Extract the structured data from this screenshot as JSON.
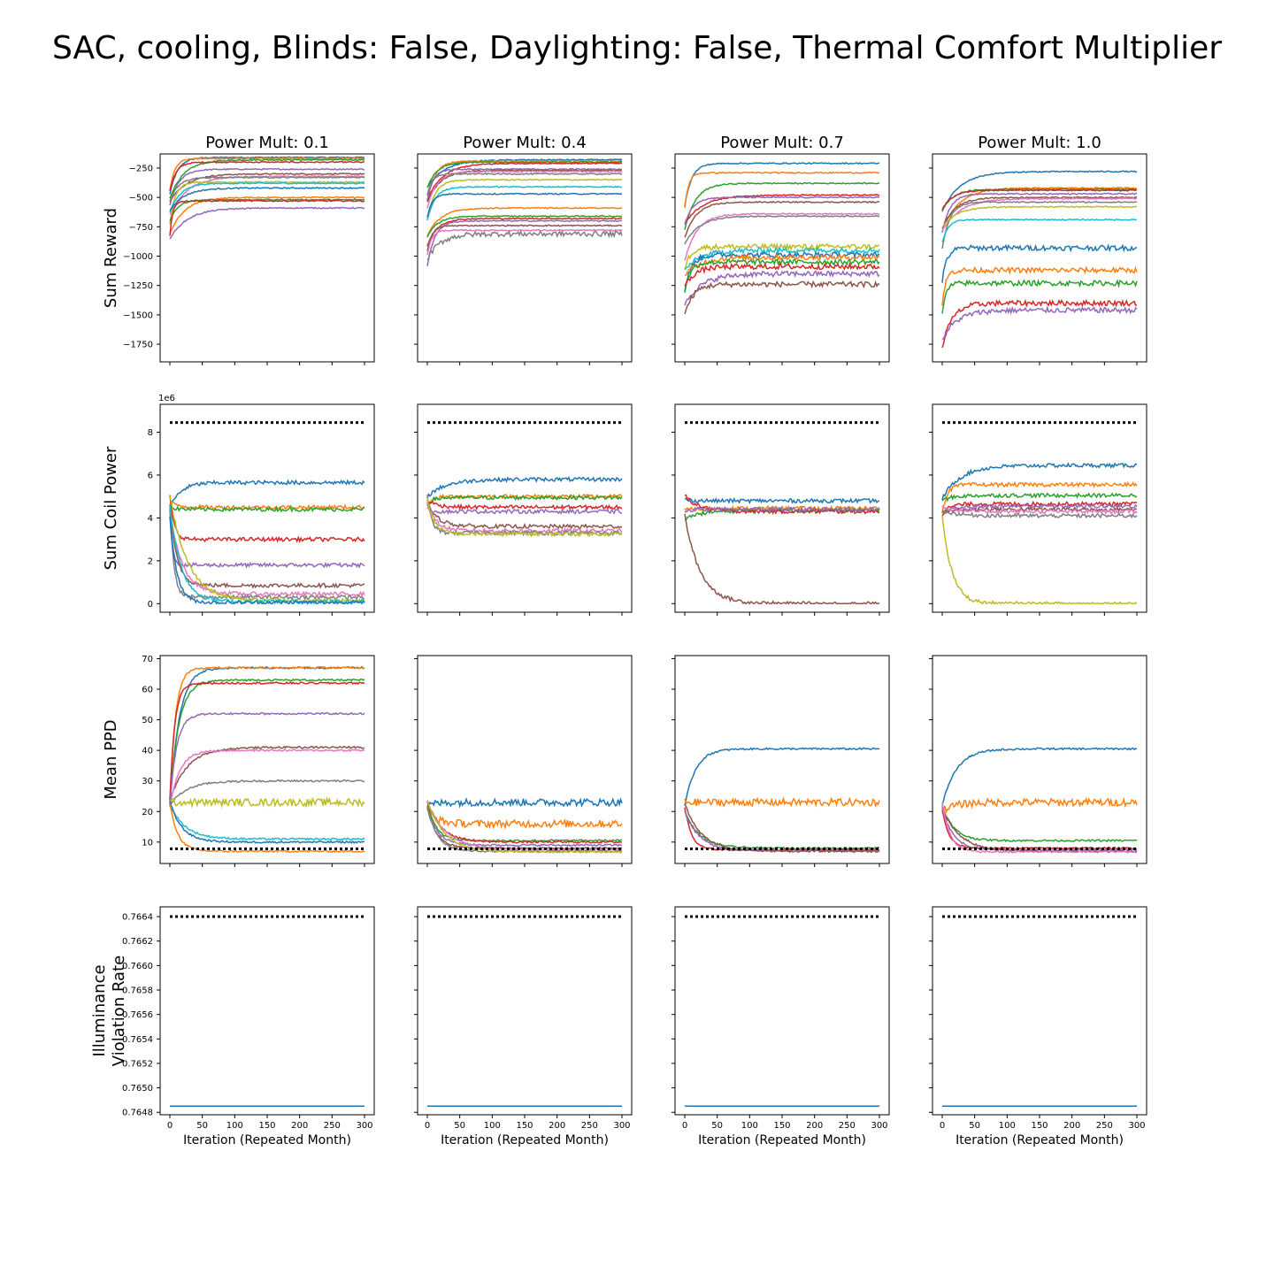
{
  "title": "SAC, cooling, Blinds: False, Daylighting: False, Thermal Comfort Multiplier",
  "colors": {
    "baseline": "#000000",
    "palette": [
      "#1f77b4",
      "#ff7f0e",
      "#2ca02c",
      "#d62728",
      "#9467bd",
      "#8c564b",
      "#e377c2",
      "#7f7f7f",
      "#bcbd22",
      "#17becf"
    ]
  },
  "chart_data": [
    {
      "type": "line",
      "columns": [
        "Power Mult: 0.1",
        "Power Mult: 0.4",
        "Power Mult: 0.7",
        "Power Mult: 1.0"
      ],
      "xlabel": "Iteration (Repeated Month)",
      "xlim": [
        -15,
        315
      ],
      "xticks": [
        0,
        50,
        100,
        150,
        200,
        250,
        300
      ],
      "rows": [
        {
          "ylabel": "Sum Reward",
          "ylim": [
            -1900,
            -130
          ],
          "yticks": [
            -250,
            -500,
            -750,
            -1000,
            -1250,
            -1500,
            -1750
          ],
          "offset_label": "",
          "series_final_values": [
            [
              -160,
              -170,
              -180,
              -200,
              -260,
              -300,
              -320,
              -330,
              -370,
              -380,
              -420,
              -500,
              -520,
              -530,
              -590
            ],
            [
              -180,
              -190,
              -200,
              -210,
              -260,
              -270,
              -280,
              -300,
              -350,
              -410,
              -470,
              -590,
              -660,
              -680,
              -700,
              -740,
              -780,
              -810
            ],
            [
              -210,
              -290,
              -380,
              -480,
              -500,
              -540,
              -640,
              -660,
              -920,
              -950,
              -990,
              -1010,
              -1050,
              -1090,
              -1150,
              -1240
            ],
            [
              -280,
              -420,
              -430,
              -440,
              -470,
              -500,
              -510,
              -540,
              -580,
              -690,
              -930,
              -1120,
              -1230,
              -1400,
              -1460
            ]
          ]
        },
        {
          "ylabel": "Sum Coil Power",
          "ylim": [
            -400000,
            9300000
          ],
          "yticks": [
            0,
            2,
            4,
            6,
            8
          ],
          "offset_label": "1e6",
          "baseline_value": 8450000,
          "series_final_values": [
            [
              5650000,
              4500000,
              4400000,
              3000000,
              1800000,
              850000,
              450000,
              300000,
              150000,
              100000,
              50000
            ],
            [
              5800000,
              5000000,
              4950000,
              4500000,
              4300000,
              3600000,
              3400000,
              3300000,
              3250000
            ],
            [
              4800000,
              4450000,
              4350000,
              4300000,
              4400000,
              0
            ],
            [
              6450000,
              5550000,
              5050000,
              4650000,
              4550000,
              4400000,
              4300000,
              4100000,
              0
            ]
          ]
        },
        {
          "ylabel": "Mean PPD",
          "ylim": [
            3,
            71
          ],
          "yticks": [
            10,
            20,
            30,
            40,
            50,
            60,
            70
          ],
          "offset_label": "",
          "baseline_value": 7.8,
          "series_final_values": [
            [
              67,
              67,
              63,
              62,
              52,
              41,
              40,
              30,
              23,
              11,
              10,
              7
            ],
            [
              23,
              16,
              10.5,
              10,
              9,
              8,
              7.5,
              7,
              6.8
            ],
            [
              40.5,
              23,
              8,
              7.5,
              7.2,
              7
            ],
            [
              40.5,
              23,
              10.5,
              8,
              7.5,
              7,
              6.8
            ]
          ]
        },
        {
          "ylabel": "Illuminance Violation Rate",
          "ylim": [
            0.76478,
            0.76648
          ],
          "yticks": [
            0.7648,
            0.765,
            0.7652,
            0.7654,
            0.7656,
            0.7658,
            0.766,
            0.7662,
            0.7664
          ],
          "offset_label": "",
          "baseline_value": 0.7664,
          "series_final_values": [
            [
              0.76485
            ],
            [
              0.76485
            ],
            [
              0.76485
            ],
            [
              0.76485
            ]
          ]
        }
      ]
    }
  ]
}
